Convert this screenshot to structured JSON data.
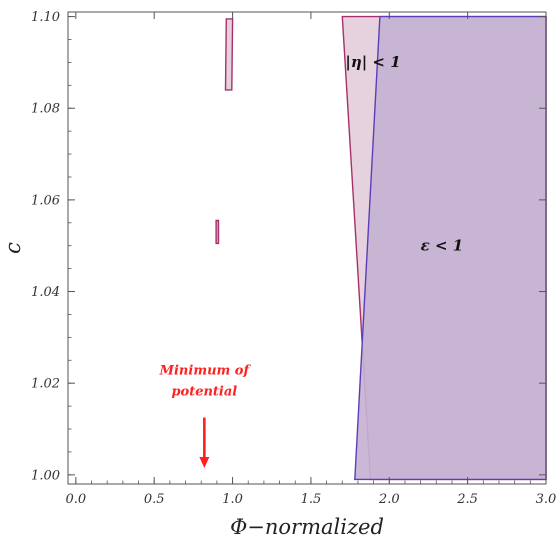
{
  "chart_data": {
    "type": "region_plot",
    "title": "",
    "xlabel": "Φ−normalized",
    "ylabel": "c",
    "xlim": [
      -0.05,
      3.0
    ],
    "ylim": [
      0.998,
      1.101
    ],
    "x_ticks": [
      "0.0",
      "0.5",
      "1.0",
      "1.5",
      "2.0",
      "2.5",
      "3.0"
    ],
    "x_tick_values": [
      0.0,
      0.5,
      1.0,
      1.5,
      2.0,
      2.5,
      3.0
    ],
    "y_ticks": [
      "1.00",
      "1.02",
      "1.04",
      "1.06",
      "1.08",
      "1.10"
    ],
    "y_tick_values": [
      1.0,
      1.02,
      1.04,
      1.06,
      1.08,
      1.1
    ],
    "grid": false,
    "regions": [
      {
        "label": "|η| < 1",
        "label_pos": [
          1.72,
          1.089
        ],
        "fill": "#e6d2de",
        "stroke": "#a8306a",
        "polygon": [
          [
            1.7,
            1.1
          ],
          [
            3.0,
            1.1
          ],
          [
            3.0,
            0.999
          ],
          [
            1.88,
            0.999
          ]
        ]
      },
      {
        "label": "ε < 1",
        "label_pos": [
          2.2,
          1.049
        ],
        "fill": "#c6b2d2",
        "stroke": "#5a3fb8",
        "polygon": [
          [
            1.94,
            1.1
          ],
          [
            3.0,
            1.1
          ],
          [
            3.0,
            0.999
          ],
          [
            1.78,
            0.999
          ]
        ]
      }
    ],
    "small_regions": [
      {
        "polygon": [
          [
            0.96,
            1.0995
          ],
          [
            1.0,
            1.0995
          ],
          [
            0.995,
            1.084
          ],
          [
            0.955,
            1.084
          ]
        ],
        "fill": "#e6d2de",
        "stroke": "#a8306a"
      },
      {
        "polygon": [
          [
            0.895,
            1.0555
          ],
          [
            0.91,
            1.0555
          ],
          [
            0.91,
            1.0505
          ],
          [
            0.895,
            1.0505
          ]
        ],
        "fill": "#c6b2d2",
        "stroke": "#a8306a"
      }
    ],
    "frame_color": "#a8306a",
    "annotations": [
      {
        "lines": [
          "Minimum of",
          "potential"
        ],
        "color": "#ff2020",
        "text_x": 0.82,
        "text_y": [
          1.0219,
          1.0173
        ],
        "arrow_x": 0.82,
        "arrow_from_y": 1.0125,
        "arrow_to_y": 1.0015
      }
    ]
  }
}
